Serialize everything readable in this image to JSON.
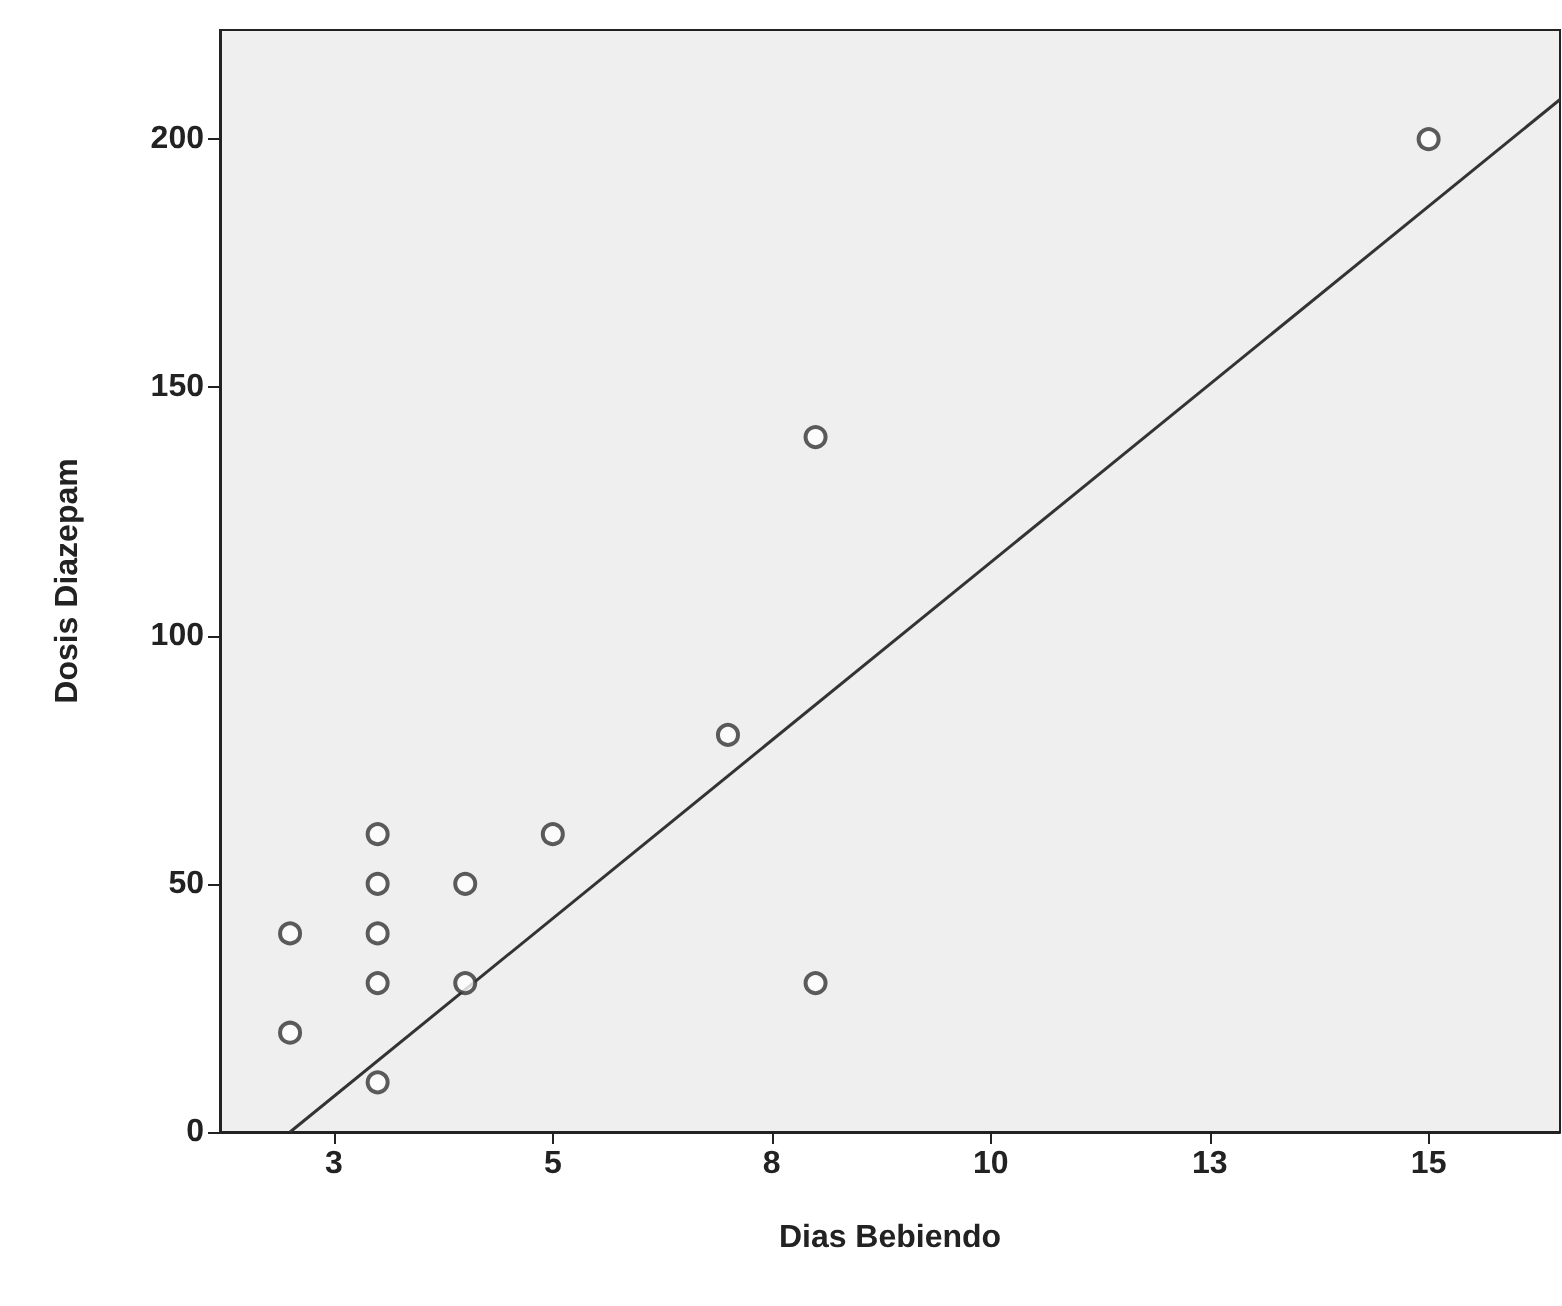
{
  "chart_data": {
    "type": "scatter",
    "xlabel": "Dias Bebiendo",
    "ylabel": "Dosis Diazepam",
    "xlim": [
      1.2,
      16.5
    ],
    "ylim": [
      0,
      222
    ],
    "xticks": [
      {
        "value": 2.5,
        "label": "3"
      },
      {
        "value": 5,
        "label": "5"
      },
      {
        "value": 7.5,
        "label": "8"
      },
      {
        "value": 10,
        "label": "10"
      },
      {
        "value": 12.5,
        "label": "13"
      },
      {
        "value": 15,
        "label": "15"
      }
    ],
    "yticks": [
      0,
      50,
      100,
      150,
      200
    ],
    "grid": false,
    "marker": "circle",
    "series": [
      {
        "color": "#333333",
        "x": [
          2,
          2,
          3,
          3,
          3,
          3,
          3,
          4,
          4,
          5,
          7,
          8,
          8,
          15
        ],
        "values": [
          40,
          20,
          60,
          50,
          40,
          30,
          10,
          50,
          30,
          60,
          80,
          140,
          30,
          200
        ]
      },
      {
        "type": "line",
        "color": "#333333",
        "line_style": "solid",
        "marker": "none",
        "x": [
          2,
          16.5
        ],
        "values": [
          0,
          208
        ]
      }
    ]
  }
}
